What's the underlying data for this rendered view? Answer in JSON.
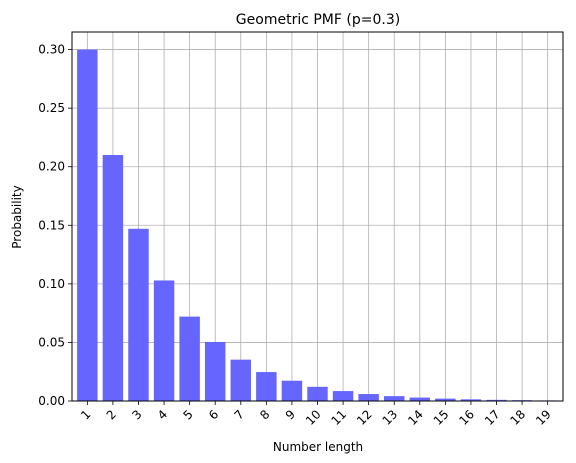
{
  "chart_data": {
    "type": "bar",
    "title": "Geometric PMF (p=0.3)",
    "xlabel": "Number length",
    "ylabel": "Probability",
    "categories": [
      "1",
      "2",
      "3",
      "4",
      "5",
      "6",
      "7",
      "8",
      "9",
      "10",
      "11",
      "12",
      "13",
      "14",
      "15",
      "16",
      "17",
      "18",
      "19"
    ],
    "values": [
      0.3,
      0.21,
      0.147,
      0.1029,
      0.07203,
      0.050421,
      0.0352947,
      0.02470629,
      0.0172944,
      0.01210608,
      0.00847426,
      0.00593198,
      0.00415239,
      0.00290667,
      0.00203467,
      0.00142427,
      0.00099699,
      0.00069789,
      0.00048853
    ],
    "ylim": [
      0,
      0.315
    ],
    "yticks": [
      "0.00",
      "0.05",
      "0.10",
      "0.15",
      "0.20",
      "0.25",
      "0.30"
    ],
    "grid": true,
    "bar_color": "#6666ff"
  }
}
